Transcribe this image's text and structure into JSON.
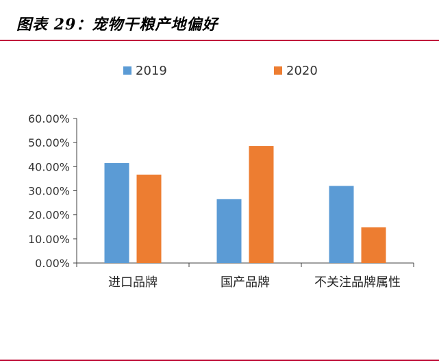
{
  "header": {
    "title": "图表 29：宠物干粮产地偏好"
  },
  "colors": {
    "accent_rule": "#c0143c",
    "series_2019": "#5b9bd5",
    "series_2020": "#ed7d31",
    "axis": "#404040"
  },
  "chart_data": {
    "type": "bar",
    "title": "",
    "xlabel": "",
    "ylabel": "",
    "ylim": [
      0,
      0.6
    ],
    "yticks": [
      "0.00%",
      "10.00%",
      "20.00%",
      "30.00%",
      "40.00%",
      "50.00%",
      "60.00%"
    ],
    "categories": [
      "进口品牌",
      "国产品牌",
      "不关注品牌属性"
    ],
    "series": [
      {
        "name": "2019",
        "values": [
          0.415,
          0.265,
          0.32
        ]
      },
      {
        "name": "2020",
        "values": [
          0.367,
          0.486,
          0.148
        ]
      }
    ],
    "legend": "top",
    "grid": false
  }
}
